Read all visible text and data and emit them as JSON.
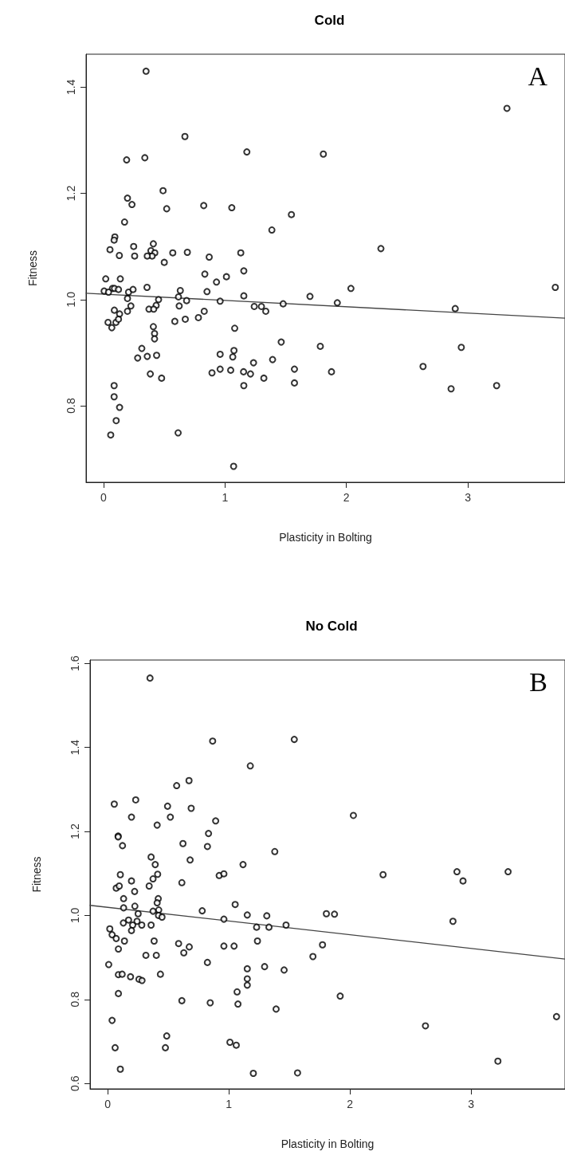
{
  "chart_data": [
    {
      "type": "scatter",
      "title": "Cold",
      "xlabel": "Plasticity in Bolting",
      "ylabel": "Fitness",
      "annotations": [
        "A"
      ],
      "xlim": [
        -0.144,
        3.8
      ],
      "ylim": [
        0.656,
        1.462
      ],
      "xticks": [
        0,
        1,
        2,
        3
      ],
      "yticks": [
        0.8,
        {
          "value": 1,
          "label": "1.0"
        },
        1.2,
        1.4
      ],
      "series": [
        {
          "marker": "circle",
          "color": "#000000",
          "x": [
            0.35,
            0.67,
            1.18,
            1.81,
            0.19,
            0.34,
            0.49,
            0.52,
            0.825,
            1.056,
            0.197,
            0.234,
            0.173,
            1.547,
            1.386,
            0.093,
            0.087,
            0.053,
            0.13,
            0.248,
            0.256,
            0.41,
            0.39,
            0.422,
            0.4,
            0.36,
            0.57,
            0.69,
            0.5,
            0.87,
            1.13,
            1.155,
            0.834,
            1.012,
            0.93,
            0.852,
            1.155,
            1.7,
            0.018,
            0.138,
            0.073,
            0.09,
            0.123,
            0.005,
            0.041,
            0.206,
            0.243,
            0.358,
            0.632,
            0.617,
            0.684,
            0.453,
            0.197,
            0.96,
            1.241,
            1.3,
            1.336,
            1.479,
            0.225,
            0.089,
            0.132,
            0.197,
            0.433,
            0.374,
            0.413,
            0.623,
            0.829,
            0.781,
            0.673,
            0.587,
            0.037,
            0.068,
            0.102,
            0.123,
            0.41,
            0.42,
            0.42,
            1.08,
            1.463,
            1.785,
            0.315,
            0.281,
            0.36,
            0.437,
            0.96,
            1.074,
            1.064,
            1.392,
            1.235,
            0.96,
            1.047,
            0.893,
            1.153,
            1.21,
            1.32,
            1.572,
            1.572,
            1.155,
            0.385,
            0.478,
            0.087,
            0.087,
            0.132,
            0.104,
            0.059,
            0.614,
            1.071,
            3.322,
            2.284,
            2.037,
            1.925,
            3.72,
            2.896,
            1.877,
            2.946,
            2.631,
            2.862,
            3.237
          ],
          "values": [
            1.43,
            1.307,
            1.278,
            1.274,
            1.263,
            1.267,
            1.205,
            1.171,
            1.177,
            1.173,
            1.191,
            1.179,
            1.146,
            1.16,
            1.131,
            1.118,
            1.112,
            1.094,
            1.083,
            1.1,
            1.082,
            1.105,
            1.092,
            1.088,
            1.082,
            1.082,
            1.088,
            1.089,
            1.07,
            1.08,
            1.088,
            1.054,
            1.048,
            1.043,
            1.033,
            1.015,
            1.007,
            1.006,
            1.039,
            1.039,
            1.021,
            1.021,
            1.019,
            1.016,
            1.014,
            1.014,
            1.019,
            1.023,
            1.017,
            1.005,
            0.998,
            1.0,
            1.002,
            0.997,
            0.987,
            0.987,
            0.978,
            0.992,
            0.988,
            0.98,
            0.973,
            0.978,
            0.989,
            0.982,
            0.982,
            0.988,
            0.978,
            0.966,
            0.963,
            0.959,
            0.957,
            0.947,
            0.957,
            0.963,
            0.949,
            0.936,
            0.926,
            0.946,
            0.92,
            0.912,
            0.908,
            0.89,
            0.893,
            0.895,
            0.897,
            0.904,
            0.892,
            0.887,
            0.881,
            0.869,
            0.867,
            0.862,
            0.864,
            0.86,
            0.852,
            0.869,
            0.843,
            0.838,
            0.86,
            0.852,
            0.838,
            0.817,
            0.797,
            0.772,
            0.745,
            0.749,
            0.686,
            1.36,
            1.096,
            1.021,
            0.994,
            1.023,
            0.983,
            0.864,
            0.91,
            0.874,
            0.832,
            0.838
          ]
        },
        {
          "type": "line",
          "marker": "none",
          "color": "#444444",
          "x": [
            -0.144,
            3.8
          ],
          "values": [
            1.012,
            0.965
          ]
        }
      ]
    },
    {
      "type": "scatter",
      "title": "No Cold",
      "xlabel": "Plasticity in Bolting",
      "ylabel": "Fitness",
      "annotations": [
        "B"
      ],
      "xlim": [
        -0.145,
        3.776
      ],
      "ylim": [
        0.587,
        1.608
      ],
      "xticks": [
        0,
        1,
        2,
        3
      ],
      "yticks": [
        0.6,
        0.8,
        {
          "value": 1,
          "label": "1.0"
        },
        1.2,
        1.4,
        1.6
      ],
      "series": [
        {
          "marker": "circle",
          "color": "#000000",
          "x": [
            0.35,
            0.867,
            1.541,
            1.178,
            0.672,
            0.57,
            0.232,
            0.055,
            0.495,
            0.69,
            0.197,
            0.518,
            0.409,
            0.892,
            0.833,
            0.824,
            0.087,
            0.087,
            0.123,
            0.622,
            0.681,
            1.38,
            0.359,
            0.393,
            0.413,
            0.375,
            1.118,
            0.921,
            0.96,
            0.105,
            0.197,
            0.071,
            0.096,
            0.223,
            0.343,
            0.613,
            0.418,
            0.132,
            0.225,
            0.132,
            0.409,
            0.422,
            0.375,
            0.252,
            0.42,
            0.449,
            0.781,
            1.053,
            0.96,
            1.153,
            1.314,
            1.473,
            1.806,
            0.173,
            0.13,
            0.243,
            0.207,
            0.282,
            0.359,
            0.197,
            0.018,
            0.037,
            0.071,
            0.139,
            0.089,
            1.23,
            1.332,
            0.384,
            0.586,
            0.674,
            0.629,
            0.96,
            1.044,
            1.237,
            1.774,
            1.695,
            0.316,
            0.402,
            0.824,
            0.009,
            1.153,
            1.296,
            1.457,
            0.089,
            0.12,
            0.189,
            0.259,
            0.284,
            0.436,
            1.153,
            1.153,
            1.069,
            0.089,
            0.613,
            0.847,
            1.076,
            1.391,
            0.037,
            0.488,
            0.062,
            0.477,
            1.01,
            1.062,
            0.105,
            1.203,
            1.568,
            2.029,
            2.274,
            2.884,
            2.934,
            3.306,
            1.873,
            2.851,
            1.92,
            2.624,
            3.222,
            3.706
          ],
          "values": [
            1.565,
            1.415,
            1.419,
            1.356,
            1.321,
            1.309,
            1.275,
            1.265,
            1.26,
            1.255,
            1.234,
            1.234,
            1.215,
            1.225,
            1.195,
            1.164,
            1.189,
            1.187,
            1.166,
            1.171,
            1.132,
            1.152,
            1.139,
            1.121,
            1.098,
            1.087,
            1.121,
            1.095,
            1.099,
            1.097,
            1.082,
            1.065,
            1.07,
            1.057,
            1.07,
            1.078,
            1.04,
            1.04,
            1.022,
            1.018,
            1.03,
            1.013,
            1.01,
            1.004,
            1.0,
            0.996,
            1.011,
            1.026,
            0.991,
            1.001,
            0.999,
            0.977,
            1.004,
            0.989,
            0.982,
            0.986,
            0.977,
            0.977,
            0.977,
            0.964,
            0.968,
            0.954,
            0.945,
            0.939,
            0.92,
            0.972,
            0.972,
            0.939,
            0.933,
            0.925,
            0.911,
            0.927,
            0.927,
            0.939,
            0.93,
            0.902,
            0.905,
            0.905,
            0.888,
            0.883,
            0.873,
            0.878,
            0.87,
            0.859,
            0.86,
            0.854,
            0.848,
            0.845,
            0.86,
            0.849,
            0.834,
            0.818,
            0.814,
            0.797,
            0.792,
            0.789,
            0.777,
            0.75,
            0.713,
            0.685,
            0.685,
            0.698,
            0.691,
            0.634,
            0.624,
            0.625,
            1.238,
            1.097,
            1.104,
            1.082,
            1.104,
            1.003,
            0.986,
            0.808,
            0.737,
            0.653,
            0.759
          ]
        },
        {
          "type": "line",
          "marker": "none",
          "color": "#444444",
          "x": [
            -0.145,
            3.776
          ],
          "values": [
            1.024,
            0.896
          ]
        }
      ]
    }
  ]
}
